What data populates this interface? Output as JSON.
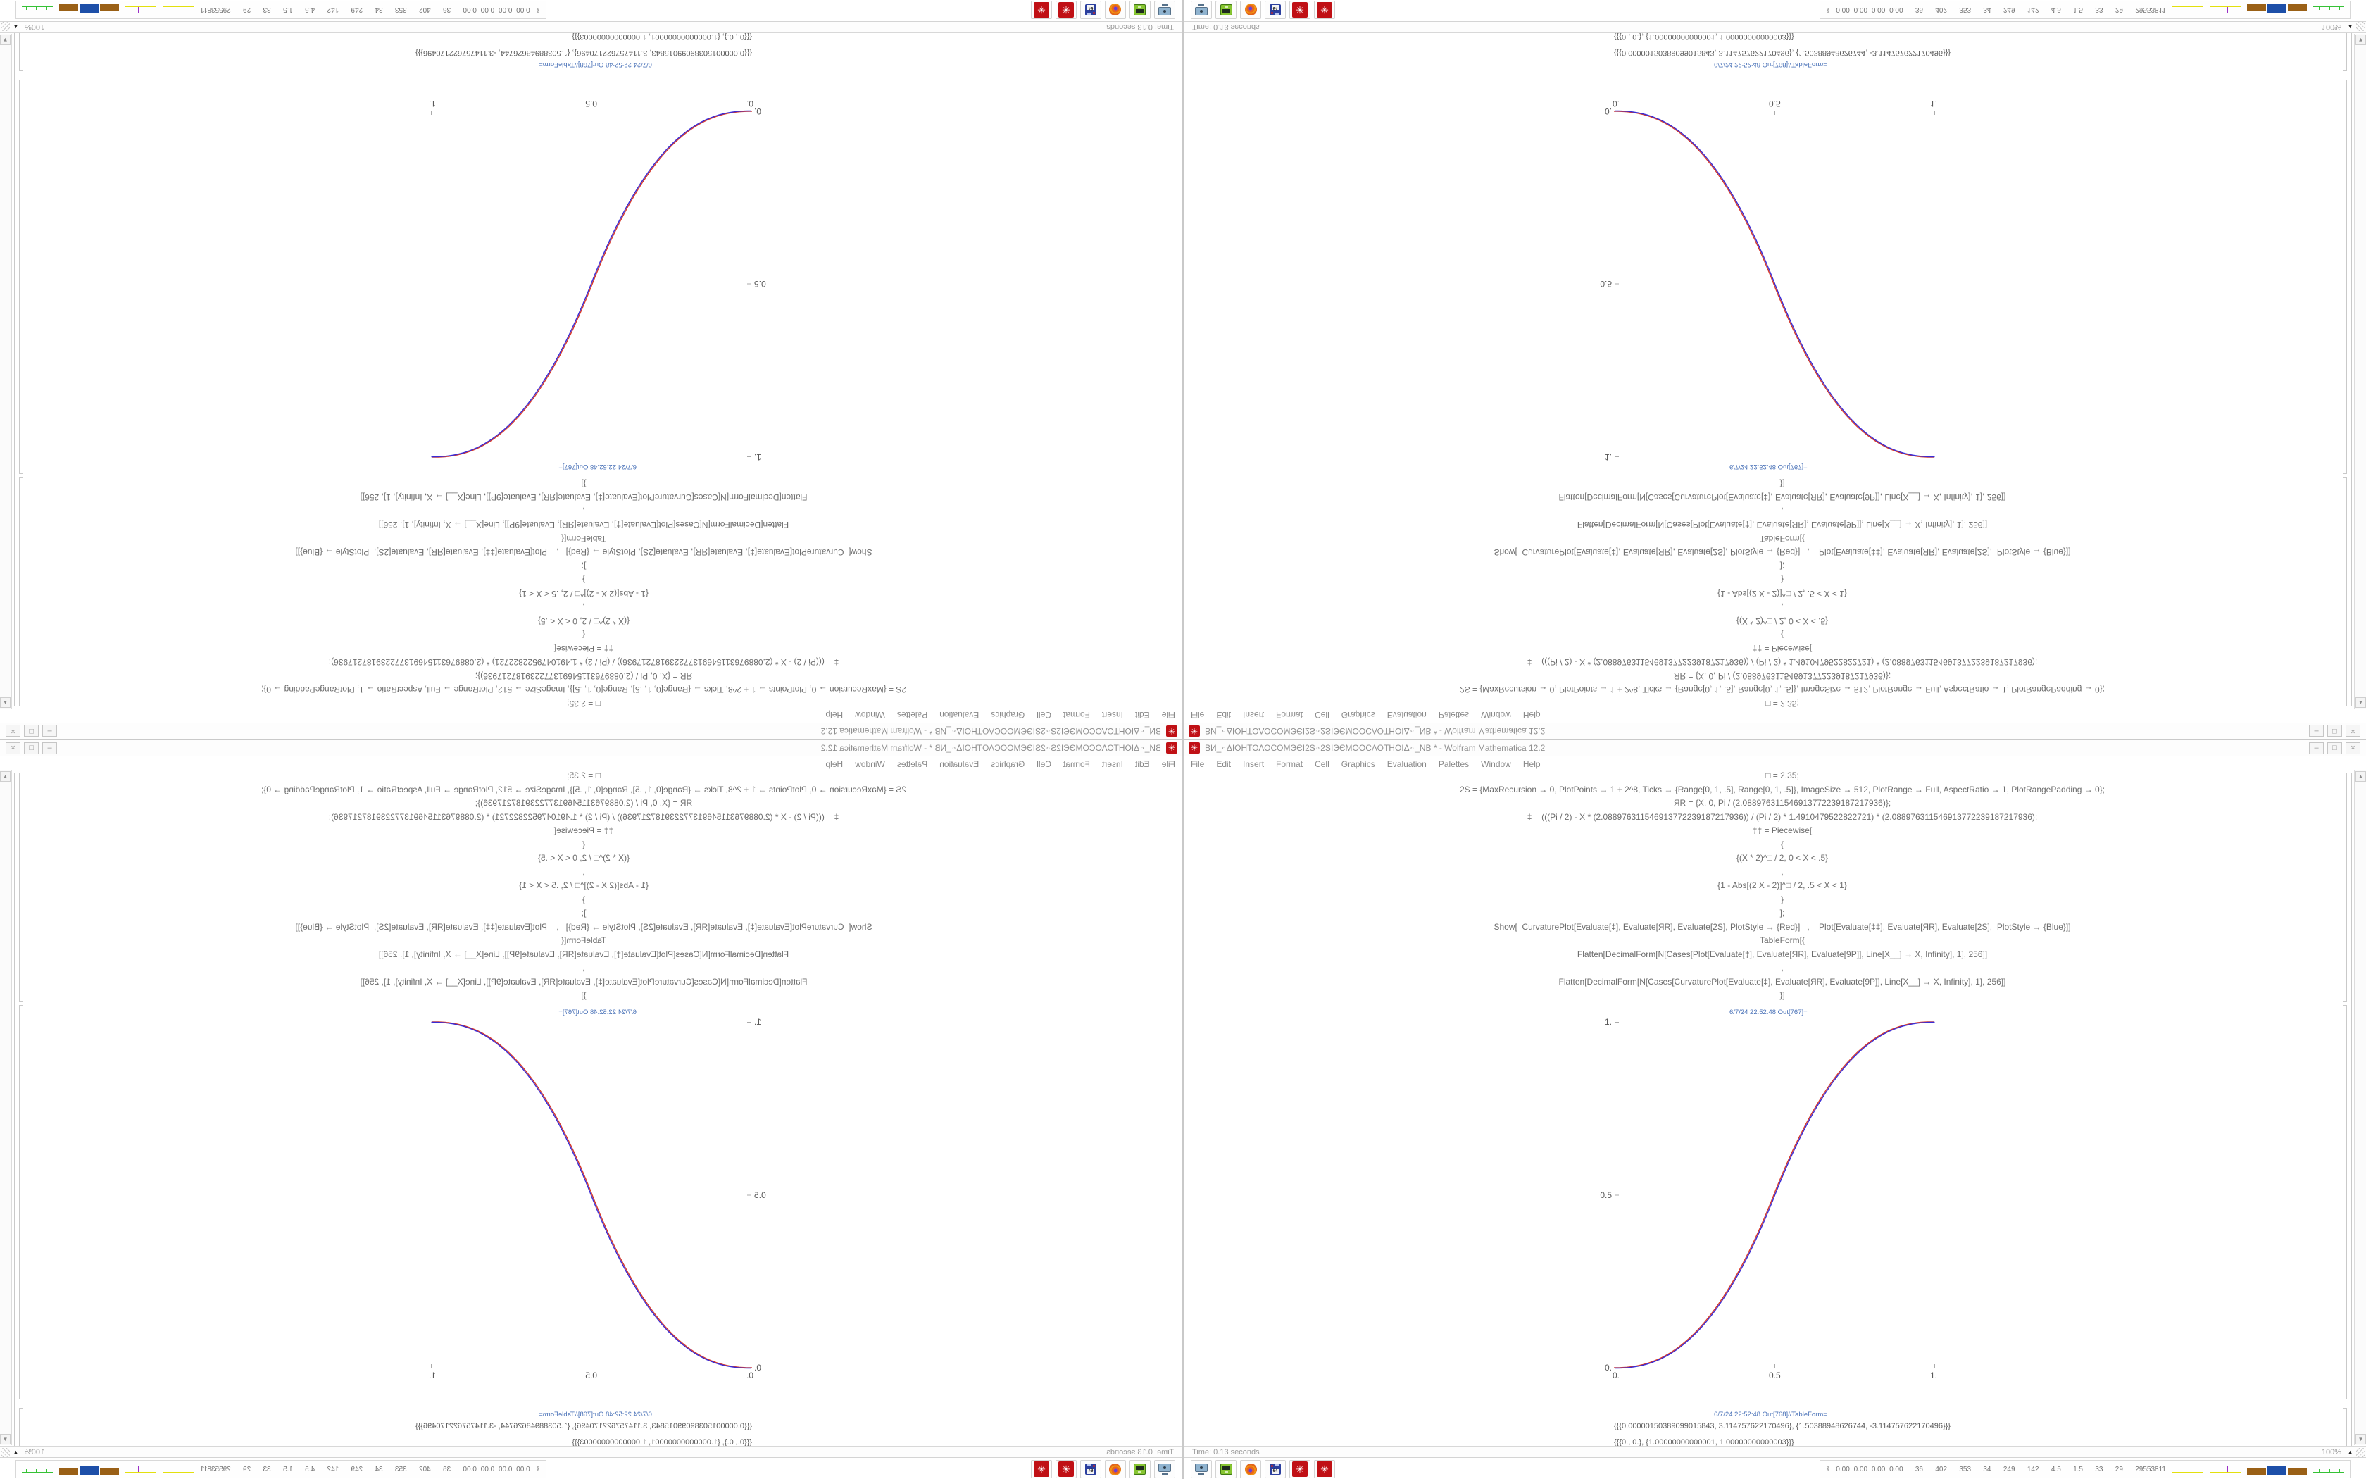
{
  "window": {
    "title": "ВИ_∘ΔΙΟΗΤΟΛΟϹΟΜЭЄΙ2S∘2SΙЭЄΜΟΟϹΛΟΤΗΟΙΔ∘_ΝΒ * - Wolfram Mathematica 12.2",
    "app_icon": "mathematica-red-gear",
    "app_icon_glyph": "✳",
    "controls": {
      "minimize": "–",
      "maximize": "□",
      "close": "×"
    }
  },
  "menu": {
    "items": [
      "File",
      "Edit",
      "Insert",
      "Format",
      "Cell",
      "Graphics",
      "Evaluation",
      "Palettes",
      "Window",
      "Help"
    ]
  },
  "notebook": {
    "input_lines": [
      "□ = 2.35;",
      "2S = {MaxRecursion → 0, PlotPoints → 1 + 2^8, Ticks → {Range[0, 1, .5], Range[0, 1, .5]}, ImageSize → 512, PlotRange → Full, AspectRatio → 1, PlotRangePadding → 0};",
      "ЯR = {X, 0, Pi / (2.088976311546913772239187217936)};",
      "‡ = (((Pi / 2) - X * (2.088976311546913772239187217936)) / (Pi / 2) * 1.4910479522822721) * (2.088976311546913772239187217936);",
      "‡‡ = Piecewise[",
      "{",
      "{(X * 2)^□ / 2, 0 < X < .5}",
      ",",
      "{1 - Abs[(2 X - 2)]^□ / 2, .5 < X < 1}",
      "}",
      "];",
      "Show[  CurvaturePlot[Evaluate[‡], Evaluate[ЯR], Evaluate[2S], PlotStyle → {Red}]   ,    Plot[Evaluate[‡‡], Evaluate[ЯR], Evaluate[2S],  PlotStyle → {Blue}]]",
      "TableForm[{",
      "Flatten[DecimalForm[N[Cases[Plot[Evaluate[‡], Evaluate[ЯR], Evaluate[9P]], Line[X__] → X, Infinity], 1], 256]]",
      ",",
      "Flatten[DecimalForm[N[Cases[CurvaturePlot[Evaluate[‡], Evaluate[ЯR], Evaluate[9P]], Line[X__] → X, Infinity], 1], 256]]",
      "}]"
    ],
    "out1_label": "6/7/24 22:52:48 Out[767]=",
    "out2_label": "6/7/24 22:52:48 Out[768]//TableForm=",
    "out2_rows": [
      "{{{0.00000150389099015843, 3.114757622170496}, {1.50388948626744, -3.114757622170496}}}",
      "{{{0., 0.}, {1.00000000000001, 1.00000000000003}}}"
    ]
  },
  "chart_data": {
    "type": "line",
    "title": "",
    "xlabel": "",
    "ylabel": "",
    "x_range": [
      0,
      1
    ],
    "y_range": [
      0,
      1
    ],
    "x_ticks": [
      "0.",
      "0.5",
      "1."
    ],
    "y_ticks": [
      "1.",
      "0.5",
      "0."
    ],
    "grid": false,
    "legend": false,
    "axes": "left-bottom",
    "exponent": 2.35,
    "x": [
      0,
      0.1,
      0.2,
      0.3,
      0.4,
      0.5,
      0.6,
      0.7,
      0.8,
      0.9,
      1
    ],
    "series": [
      {
        "name": "CurvaturePlot (PlotStyle Red)",
        "color": "#d63a2c",
        "values": [
          0,
          0.011,
          0.058,
          0.151,
          0.296,
          0.5,
          0.704,
          0.849,
          0.942,
          0.989,
          1
        ]
      },
      {
        "name": "Plot (PlotStyle Blue)",
        "color": "#3a2cd6",
        "values": [
          0,
          0.011,
          0.058,
          0.151,
          0.296,
          0.5,
          0.704,
          0.849,
          0.942,
          0.989,
          1
        ]
      }
    ]
  },
  "statusbar": {
    "time": "Time: 0.13 seconds",
    "zoom": "100%",
    "zoom_tri": "▲"
  },
  "scrollbar": {
    "up": "▲",
    "down": "▼"
  },
  "taskbar": {
    "launchers": [
      "screenshot-tool",
      "green-emulator",
      "firefox",
      "floppy-64",
      "mathematica-1",
      "mathematica-2"
    ],
    "floppy_label": "64",
    "math_glyph": "✳",
    "tray": {
      "chevrons": "∧∧",
      "numbers": "0.00 0.00 0.00 0.00   36   402   353   34   249   142   4.5   1.5   33   29   29553811"
    }
  },
  "layout_note": "Single 1680x1050 desktop mirrored 4 ways: original bottom-right, horizontal flip bottom-left, vertical flip top-right, 180deg rotation top-left",
  "colors": {
    "curve_red": "#d63a2c",
    "curve_blue": "#3a2cd6",
    "out_label_blue": "#4a72b8",
    "axis_gray": "#ababab",
    "mathematica_icon_red": "#c01015",
    "tray_yellow": "#e3e00e",
    "tray_purple": "#9b30c8",
    "tray_brown": "#9a6016",
    "tray_blue": "#1d4fa8",
    "tray_green": "#35c235"
  }
}
